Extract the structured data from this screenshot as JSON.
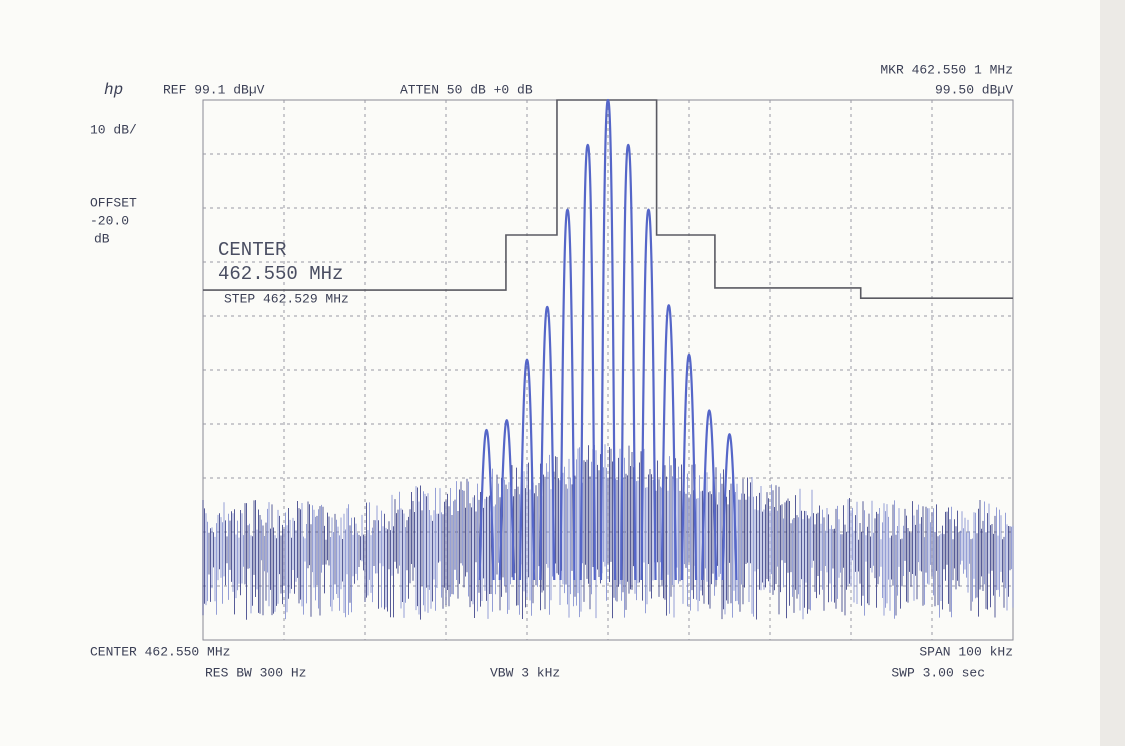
{
  "chart_data": {
    "type": "line",
    "annotations": {
      "logo": "hp",
      "ref": "REF 99.1 dBµV",
      "atten": "ATTEN 50 dB +0 dB",
      "marker_freq": "MKR 462.550 1 MHz",
      "marker_level": "99.50 dBµV",
      "scale": "10 dB/",
      "offset_label": "OFFSET",
      "offset_value": "-20.0",
      "offset_unit": "dB",
      "center_label": "CENTER",
      "center_value": "462.550 MHz",
      "step": "STEP 462.529 MHz",
      "center_footer": "CENTER 462.550 MHz",
      "span": "SPAN 100 kHz",
      "res_bw": "RES BW 300 Hz",
      "vbw": "VBW 3 kHz",
      "sweep": "SWP 3.00 sec"
    },
    "xlim": [
      462.5,
      462.6
    ],
    "ylim": [
      -0.9,
      99.1
    ],
    "grid": true,
    "series": [
      {
        "style": "step",
        "color": "#5a5a62",
        "x": [
          462.5,
          462.5374,
          462.5374,
          462.5437,
          462.5437,
          462.556,
          462.556,
          462.5632,
          462.5632,
          462.5812,
          462.5812,
          462.6
        ],
        "values": [
          63.9,
          63.9,
          74.1,
          74.1,
          99.1,
          99.1,
          74.1,
          74.1,
          64.3,
          64.3,
          62.4,
          62.4
        ]
      },
      {
        "style": "spikes",
        "color": "#5566c8",
        "x": [
          462.535,
          462.5375,
          462.54,
          462.5425,
          462.545,
          462.5475,
          462.55,
          462.5525,
          462.555,
          462.5575,
          462.56,
          462.5625,
          462.565
        ],
        "values": [
          38.0,
          39.8,
          51.0,
          60.8,
          78.8,
          90.8,
          99.1,
          90.8,
          78.8,
          61.1,
          51.9,
          41.6,
          37.2
        ]
      }
    ]
  }
}
